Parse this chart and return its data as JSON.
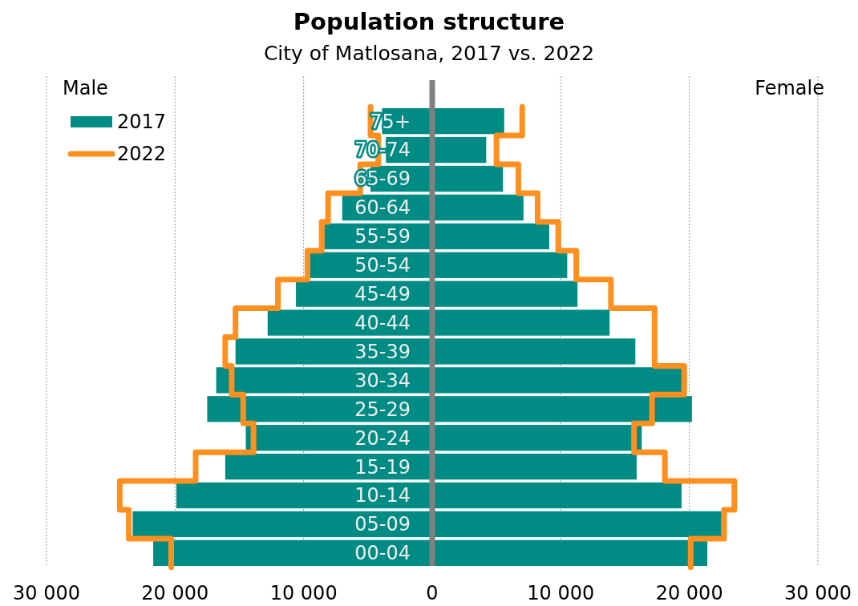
{
  "chart_data": {
    "type": "bar",
    "orientation": "horizontal",
    "title": "Population structure",
    "subtitle": "City of Matlosana, 2017 vs. 2022",
    "annotations": [
      "Male",
      "Female"
    ],
    "categories": [
      "75+",
      "70-74",
      "65-69",
      "60-64",
      "55-59",
      "50-54",
      "45-49",
      "40-44",
      "35-39",
      "30-34",
      "25-29",
      "20-24",
      "15-19",
      "10-14",
      "05-09",
      "00-04"
    ],
    "series": [
      {
        "name": "2017",
        "color": "#008b84",
        "values": [
          -3900,
          -3600,
          -4800,
          -7000,
          -8400,
          -9500,
          -10600,
          -12800,
          -15300,
          -16800,
          -17500,
          -14500,
          -16100,
          -19900,
          -23300,
          -21700
        ]
      },
      {
        "color": "#008b84",
        "values": [
          5600,
          4200,
          5500,
          7100,
          9100,
          10500,
          11300,
          13800,
          15800,
          19400,
          20200,
          16300,
          15900,
          19400,
          22500,
          21400
        ]
      },
      {
        "name": "2022",
        "type": "step",
        "color": "#ff9020",
        "values": [
          -4800,
          -4200,
          -5600,
          -8100,
          -8600,
          -9700,
          -12000,
          -15300,
          -16100,
          -15600,
          -14700,
          -13900,
          -18400,
          -24300,
          -23600,
          -20300
        ]
      },
      {
        "type": "step",
        "color": "#ff9020",
        "values": [
          7000,
          5000,
          6700,
          8200,
          9800,
          11200,
          13900,
          17300,
          17300,
          19600,
          17100,
          15700,
          18100,
          23500,
          22700,
          20100
        ]
      }
    ],
    "xlim": [
      -30000,
      30000
    ],
    "xticks": [
      {
        "value": -30000,
        "label": "30 000"
      },
      {
        "value": -20000,
        "label": "20 000"
      },
      {
        "value": -10000,
        "label": "10 000"
      },
      0,
      {
        "value": 10000,
        "label": "10 000"
      },
      {
        "value": 20000,
        "label": "20 000"
      },
      {
        "value": 30000,
        "label": "30 000"
      }
    ],
    "grid": "x",
    "legend": "top left",
    "stacked": true
  }
}
